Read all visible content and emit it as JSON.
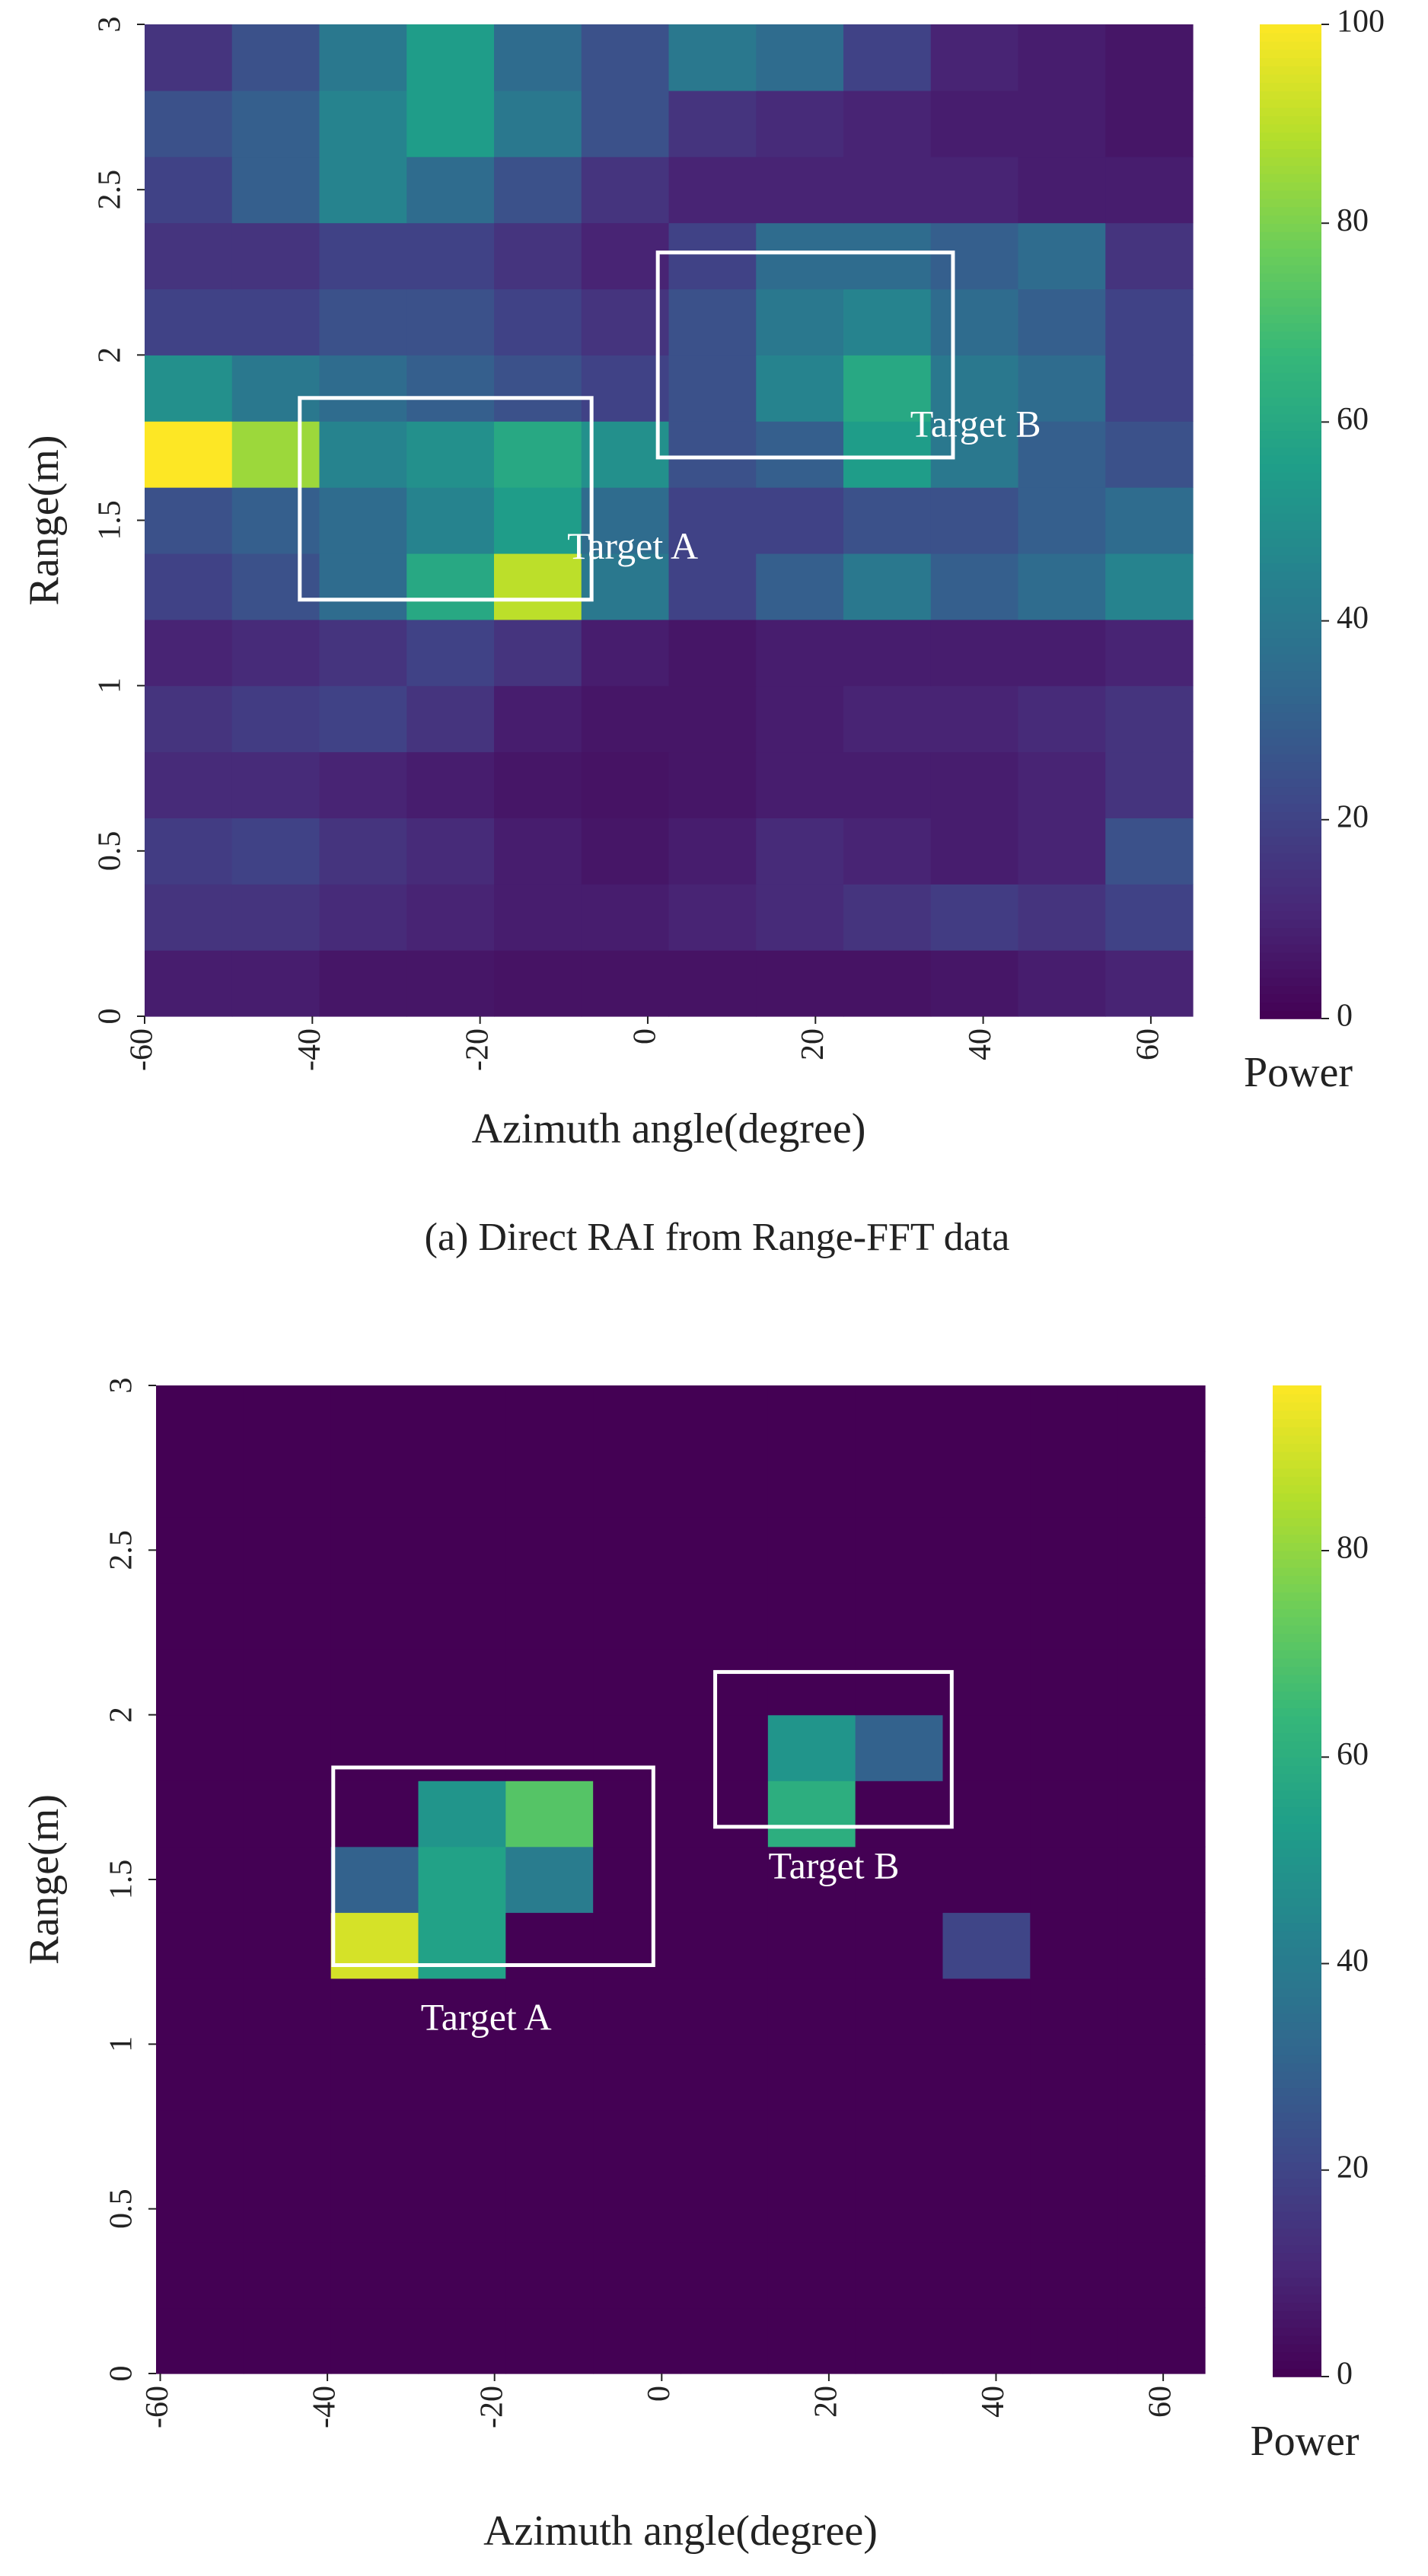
{
  "chart_data": [
    {
      "type": "heatmap",
      "caption": "(a) Direct RAI from Range-FFT data",
      "xlabel": "Azimuth angle(degree)",
      "ylabel": "Range(m)",
      "colorbar_label": "Power",
      "xlim": [
        -60,
        65
      ],
      "ylim": [
        0,
        3
      ],
      "xticks": [
        -60,
        -40,
        -20,
        0,
        20,
        40,
        60
      ],
      "yticks": [
        0,
        0.5,
        1,
        1.5,
        2,
        2.5,
        3
      ],
      "clim": [
        0,
        100
      ],
      "cticks": [
        0,
        20,
        40,
        60,
        80,
        100
      ],
      "z": [
        [
          8,
          8,
          6,
          6,
          5,
          5,
          5,
          5,
          5,
          6,
          8,
          10
        ],
        [
          15,
          15,
          12,
          10,
          8,
          8,
          10,
          12,
          15,
          18,
          15,
          20
        ],
        [
          18,
          20,
          15,
          12,
          8,
          6,
          8,
          12,
          10,
          8,
          10,
          25
        ],
        [
          12,
          12,
          10,
          8,
          6,
          5,
          6,
          8,
          8,
          8,
          10,
          15
        ],
        [
          15,
          18,
          20,
          15,
          8,
          6,
          6,
          8,
          10,
          10,
          12,
          15
        ],
        [
          10,
          12,
          15,
          20,
          15,
          8,
          6,
          8,
          8,
          8,
          8,
          10
        ],
        [
          20,
          25,
          35,
          60,
          90,
          40,
          20,
          30,
          40,
          30,
          35,
          45
        ],
        [
          25,
          30,
          35,
          45,
          55,
          35,
          20,
          20,
          25,
          25,
          30,
          35
        ],
        [
          100,
          85,
          45,
          50,
          60,
          50,
          25,
          30,
          55,
          40,
          30,
          25
        ],
        [
          50,
          40,
          35,
          30,
          25,
          20,
          25,
          45,
          60,
          40,
          35,
          20
        ],
        [
          20,
          20,
          25,
          25,
          20,
          15,
          25,
          40,
          45,
          35,
          30,
          20
        ],
        [
          15,
          15,
          20,
          20,
          15,
          10,
          20,
          35,
          35,
          30,
          35,
          15
        ],
        [
          20,
          30,
          45,
          35,
          25,
          15,
          10,
          10,
          10,
          10,
          8,
          8
        ],
        [
          25,
          30,
          45,
          55,
          40,
          25,
          15,
          12,
          10,
          8,
          8,
          6
        ],
        [
          15,
          25,
          40,
          55,
          35,
          25,
          40,
          35,
          20,
          10,
          8,
          6
        ]
      ],
      "boxes": [
        {
          "label": "Target A",
          "x": [
            -41.5,
            -6.7
          ],
          "y": [
            1.26,
            1.87
          ],
          "label_at": [
            -1.8,
            1.41
          ]
        },
        {
          "label": "Target B",
          "x": [
            1.2,
            36.4
          ],
          "y": [
            1.69,
            2.31
          ],
          "label_at": [
            39.1,
            1.78
          ]
        }
      ]
    },
    {
      "type": "heatmap",
      "xlabel": "Azimuth angle(degree)",
      "ylabel": "Range(m)",
      "colorbar_label": "Power",
      "xlim": [
        -60.5,
        65
      ],
      "ylim": [
        0,
        3
      ],
      "xticks": [
        -60,
        -40,
        -20,
        0,
        20,
        40,
        60
      ],
      "yticks": [
        0,
        0.5,
        1,
        1.5,
        2,
        2.5,
        3
      ],
      "clim": [
        0,
        96
      ],
      "cticks": [
        0,
        20,
        40,
        60,
        80
      ],
      "z": [
        [
          0,
          0,
          0,
          0,
          0,
          0,
          0,
          0,
          0,
          0,
          0,
          0
        ],
        [
          0,
          0,
          0,
          0,
          0,
          0,
          0,
          0,
          0,
          0,
          0,
          0
        ],
        [
          0,
          0,
          0,
          0,
          0,
          0,
          0,
          0,
          0,
          0,
          0,
          0
        ],
        [
          0,
          0,
          0,
          0,
          0,
          0,
          0,
          0,
          0,
          0,
          0,
          0
        ],
        [
          0,
          0,
          0,
          0,
          0,
          0,
          0,
          0,
          0,
          0,
          0,
          0
        ],
        [
          0,
          0,
          0,
          0,
          0,
          0,
          0,
          0,
          0,
          0,
          0,
          0
        ],
        [
          0,
          0,
          90,
          55,
          0,
          0,
          0,
          0,
          0,
          20,
          0,
          0
        ],
        [
          0,
          0,
          30,
          55,
          40,
          0,
          0,
          0,
          0,
          0,
          0,
          0
        ],
        [
          0,
          0,
          0,
          50,
          70,
          0,
          0,
          60,
          0,
          0,
          0,
          0
        ],
        [
          0,
          0,
          0,
          0,
          0,
          0,
          0,
          50,
          30,
          0,
          0,
          0
        ],
        [
          0,
          0,
          0,
          0,
          0,
          0,
          0,
          0,
          0,
          0,
          0,
          0
        ],
        [
          0,
          0,
          0,
          0,
          0,
          0,
          0,
          0,
          0,
          0,
          0,
          0
        ],
        [
          0,
          0,
          0,
          0,
          0,
          0,
          0,
          0,
          0,
          0,
          0,
          0
        ],
        [
          0,
          0,
          0,
          0,
          0,
          0,
          0,
          0,
          0,
          0,
          0,
          0
        ],
        [
          0,
          0,
          0,
          0,
          0,
          0,
          0,
          0,
          0,
          0,
          0,
          0
        ]
      ],
      "boxes": [
        {
          "label": "Target A",
          "x": [
            -39.3,
            -1.0
          ],
          "y": [
            1.24,
            1.84
          ],
          "label_at": [
            -21,
            1.07
          ]
        },
        {
          "label": "Target B",
          "x": [
            6.4,
            34.7
          ],
          "y": [
            1.66,
            2.13
          ],
          "label_at": [
            20.6,
            1.53
          ]
        }
      ]
    }
  ]
}
